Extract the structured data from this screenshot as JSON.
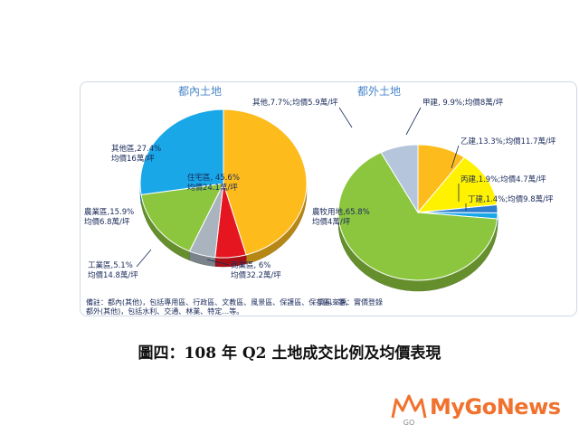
{
  "chart_data": [
    {
      "type": "pie",
      "title": "都內土地",
      "slices": [
        {
          "label": "住宅區, 45.6%",
          "price": "均價24.1萬/坪",
          "value": 45.6,
          "color": "#fdbb1c"
        },
        {
          "label": "商業區, 6%",
          "price": "均價32.2萬/坪",
          "value": 6.0,
          "color": "#e5161f"
        },
        {
          "label": "工業區,5.1%",
          "price": "均價14.8萬/坪",
          "value": 5.1,
          "color": "#aab4bf"
        },
        {
          "label": "農業區,15.9%",
          "price": "均價6.8萬/坪",
          "value": 15.9,
          "color": "#8cc63f"
        },
        {
          "label": "其他區,27.4%",
          "price": "均價16萬/坪",
          "value": 27.4,
          "color": "#19a7e8"
        }
      ]
    },
    {
      "type": "pie",
      "title": "都外土地",
      "slices": [
        {
          "label": "甲建, 9.9%;均價8萬/坪",
          "value": 9.9,
          "color": "#fdbb1c"
        },
        {
          "label": "乙建,13.3%;均價11.7萬/坪",
          "value": 13.3,
          "color": "#fff200"
        },
        {
          "label": "丙建,1.9%;均價4.7萬/坪",
          "value": 1.9,
          "color": "#2e7fd0"
        },
        {
          "label": "丁建,1.4%;均價9.8萬/坪",
          "value": 1.4,
          "color": "#19a7e8"
        },
        {
          "label": "農牧用地,65.8%",
          "price": "均價4萬/坪",
          "value": 65.8,
          "color": "#8cc63f"
        },
        {
          "label": "其他,7.7%;均價5.9萬/坪",
          "value": 7.7,
          "color": "#b5c5dc"
        }
      ]
    }
  ],
  "notes": {
    "line1": "備註：都內(其他)，包括專用區、行政區、文教區、風景區、保護區、保存區…等，",
    "line2": "都外(其他)，包括水利、交通、林業、特定…等。",
    "source": "資料來源：實價登錄"
  },
  "caption": "圖四：108 年 Q2 土地成交比例及均價表現",
  "watermark": {
    "brand": "MyGoNews",
    "logo_letters": "GO"
  }
}
